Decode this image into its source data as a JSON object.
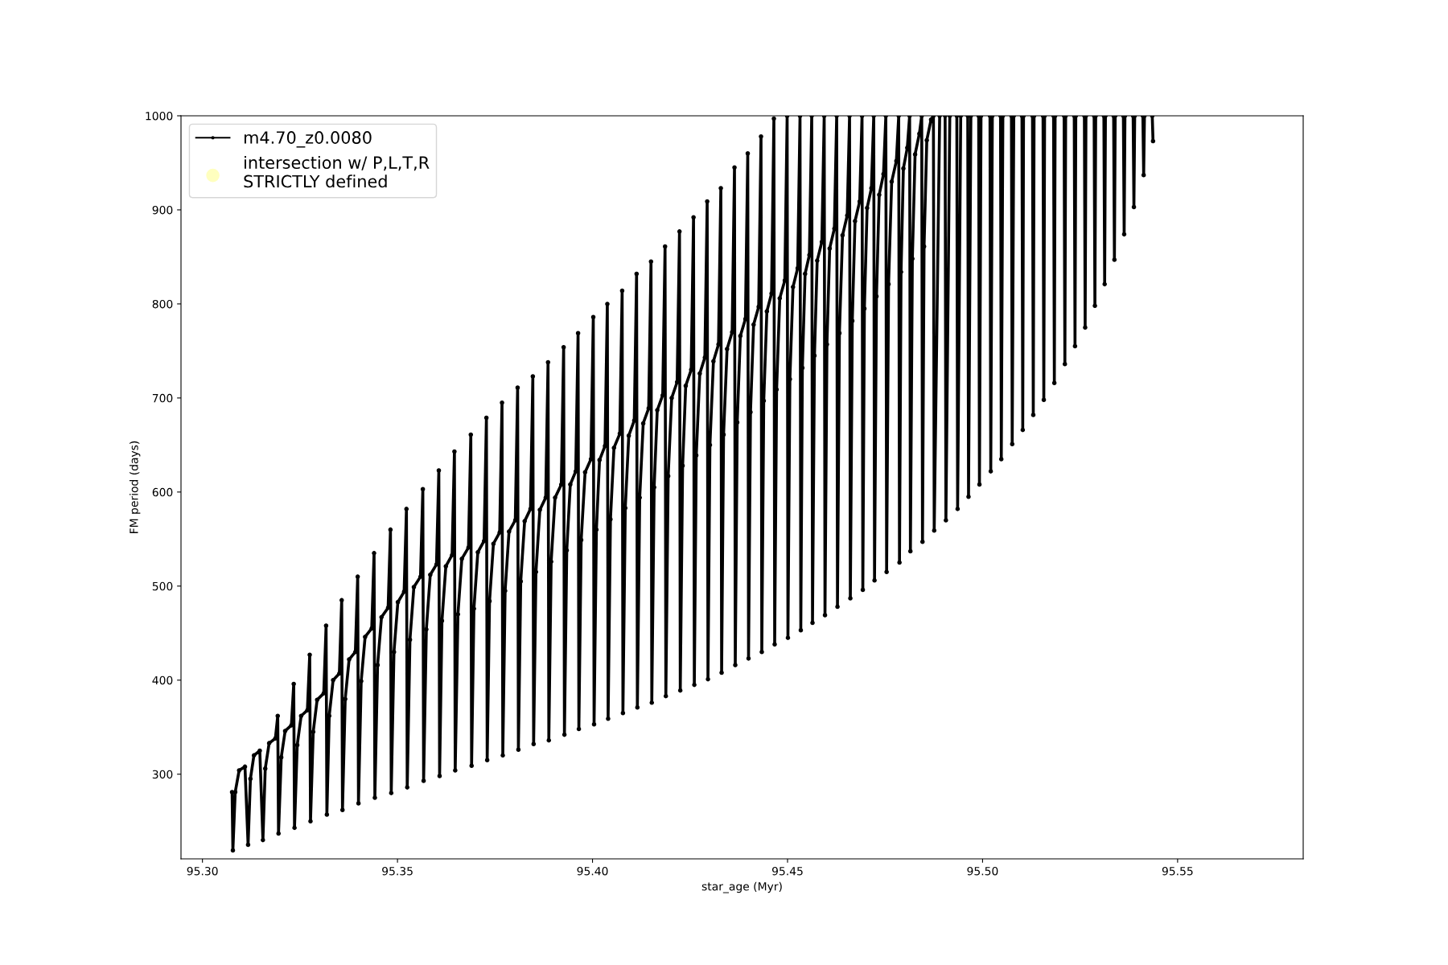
{
  "chart_data": {
    "type": "line",
    "xlabel": "star_age (Myr)",
    "ylabel": "FM period (days)",
    "xlim": [
      95.2945,
      95.5822
    ],
    "ylim": [
      210,
      1000
    ],
    "xticks": [
      {
        "value": 95.3,
        "label": "95.30"
      },
      {
        "value": 95.35,
        "label": "95.35"
      },
      {
        "value": 95.4,
        "label": "95.40"
      },
      {
        "value": 95.45,
        "label": "95.45"
      },
      {
        "value": 95.5,
        "label": "95.50"
      },
      {
        "value": 95.55,
        "label": "95.55"
      }
    ],
    "yticks": [
      300,
      400,
      500,
      600,
      700,
      800,
      900,
      1000
    ],
    "legend": "top left",
    "marker": "circle",
    "series": [
      {
        "name": "m4.70_z0.0080",
        "color": "#000000",
        "x": [
          95.3076,
          95.3078,
          95.3084,
          95.3094,
          95.3109,
          95.3117,
          95.3123,
          95.3132,
          95.3147,
          95.3155,
          95.3161,
          95.3171,
          95.3187,
          95.3193,
          95.3195,
          95.3202,
          95.3212,
          95.3228,
          95.3234,
          95.3236,
          95.3243,
          95.3253,
          95.3269,
          95.3275,
          95.3277,
          95.3284,
          95.3294,
          95.3311,
          95.3317,
          95.3319,
          95.3325,
          95.3335,
          95.3351,
          95.3357,
          95.3359,
          95.3366,
          95.3376,
          95.3392,
          95.3398,
          95.34,
          95.3407,
          95.3417,
          95.3434,
          95.344,
          95.3442,
          95.3449,
          95.3459,
          95.3476,
          95.3482,
          95.3484,
          95.3491,
          95.3501,
          95.3517,
          95.3523,
          95.3525,
          95.3532,
          95.3542,
          95.3559,
          95.3565,
          95.3567,
          95.3574,
          95.3584,
          95.36,
          95.3606,
          95.3608,
          95.3614,
          95.3624,
          95.364,
          95.3646,
          95.3648,
          95.3655,
          95.3665,
          95.3682,
          95.3688,
          95.369,
          95.3696,
          95.3706,
          95.3722,
          95.3728,
          95.373,
          95.3736,
          95.3746,
          95.3762,
          95.3768,
          95.377,
          95.3776,
          95.3786,
          95.3802,
          95.3808,
          95.381,
          95.3816,
          95.3826,
          95.3841,
          95.3847,
          95.3849,
          95.3855,
          95.3865,
          95.388,
          95.3886,
          95.3888,
          95.3894,
          95.3904,
          95.392,
          95.3926,
          95.3928,
          95.3934,
          95.3943,
          95.3957,
          95.3963,
          95.3965,
          95.3971,
          95.3981,
          95.3996,
          95.4002,
          95.4004,
          95.401,
          95.4018,
          95.4032,
          95.4038,
          95.404,
          95.4046,
          95.4055,
          95.407,
          95.4076,
          95.4078,
          95.4084,
          95.4093,
          95.4107,
          95.4113,
          95.4115,
          95.4121,
          95.413,
          95.4144,
          95.415,
          95.4152,
          95.4158,
          95.4166,
          95.418,
          95.4186,
          95.4188,
          95.4194,
          95.4203,
          95.4217,
          95.4223,
          95.4225,
          95.4231,
          95.4239,
          95.4253,
          95.4259,
          95.4261,
          95.4266,
          95.4275,
          95.4288,
          95.4294,
          95.4296,
          95.4301,
          95.431,
          95.4323,
          95.4329,
          95.4331,
          95.4336,
          95.4345,
          95.4358,
          95.4364,
          95.4366,
          95.4371,
          95.4379,
          95.4392,
          95.4398,
          95.44,
          95.4405,
          95.4413,
          95.4426,
          95.4432,
          95.4434,
          95.4439,
          95.4447,
          95.4459,
          95.4465,
          95.4467,
          95.4472,
          95.448,
          95.4493,
          95.4499,
          95.4501,
          95.4506,
          95.4514,
          95.4526,
          95.4532,
          95.4534,
          95.4538,
          95.4545,
          95.4556,
          95.4562,
          95.4564,
          95.4569,
          95.4576,
          95.4588,
          95.4594,
          95.4596,
          95.4601,
          95.4608,
          95.462,
          95.4626,
          95.4628,
          95.4633,
          95.4641,
          95.4653,
          95.4659,
          95.4661,
          95.4666,
          95.4673,
          95.4685,
          95.4691,
          95.4693,
          95.4697,
          95.4704,
          95.4715,
          95.4721,
          95.4723,
          95.4728,
          95.4735,
          95.4746,
          95.4752,
          95.4754,
          95.4759,
          95.4767,
          95.4779,
          95.4785,
          95.4787,
          95.4791,
          95.4797,
          95.4807,
          95.4813,
          95.4815,
          95.482,
          95.4827,
          95.4838,
          95.4844,
          95.4846,
          95.485,
          95.4857,
          95.4868,
          95.4874,
          95.4876,
          95.489,
          95.49,
          95.4904,
          95.4906,
          95.4916,
          95.493,
          95.4934,
          95.4936,
          95.4944,
          95.4958,
          95.4962,
          95.4964,
          95.497,
          95.4986,
          95.499,
          95.4992,
          95.4996,
          95.5015,
          95.5019,
          95.5021,
          95.5025,
          95.5042,
          95.5046,
          95.5048,
          95.5052,
          95.507,
          95.5074,
          95.5076,
          95.508,
          95.5097,
          95.5101,
          95.5103,
          95.5105,
          95.5124,
          95.5128,
          95.513,
          95.5132,
          95.5151,
          95.5155,
          95.5157,
          95.5159,
          95.5178,
          95.5182,
          95.5184,
          95.5186,
          95.5205,
          95.5209,
          95.5211,
          95.5213,
          95.5231,
          95.5235,
          95.5237,
          95.5239,
          95.5257,
          95.5261,
          95.5263,
          95.5265,
          95.5282,
          95.5286,
          95.5288,
          95.529,
          95.5307,
          95.5311,
          95.5313,
          95.5315,
          95.5332,
          95.5336,
          95.5338,
          95.534,
          95.5357,
          95.5361,
          95.5363,
          95.5365,
          95.5382,
          95.5386,
          95.5388,
          95.539,
          95.5407,
          95.5411,
          95.5413,
          95.5415,
          95.5431,
          95.5435,
          95.5437
        ],
        "values": [
          281,
          219,
          281,
          304,
          308,
          225,
          295,
          320,
          325,
          230,
          306,
          333,
          338,
          362,
          237,
          318,
          346,
          352,
          396,
          243,
          331,
          362,
          368,
          427,
          250,
          345,
          379,
          386,
          458,
          257,
          362,
          400,
          407,
          485,
          262,
          380,
          422,
          430,
          510,
          269,
          399,
          446,
          455,
          535,
          275,
          416,
          467,
          477,
          560,
          280,
          430,
          483,
          494,
          582,
          286,
          443,
          499,
          510,
          603,
          293,
          454,
          512,
          523,
          623,
          298,
          463,
          521,
          533,
          643,
          304,
          470,
          529,
          541,
          661,
          309,
          476,
          536,
          548,
          679,
          315,
          484,
          545,
          557,
          695,
          320,
          495,
          558,
          570,
          711,
          326,
          505,
          569,
          582,
          723,
          332,
          515,
          581,
          594,
          738,
          336,
          526,
          594,
          608,
          754,
          342,
          538,
          608,
          622,
          769,
          348,
          549,
          621,
          635,
          786,
          353,
          560,
          634,
          649,
          800,
          359,
          571,
          647,
          662,
          814,
          365,
          583,
          660,
          676,
          832,
          371,
          594,
          673,
          689,
          845,
          376,
          605,
          687,
          703,
          861,
          383,
          617,
          700,
          717,
          877,
          389,
          628,
          713,
          730,
          892,
          395,
          639,
          726,
          743,
          909,
          401,
          650,
          739,
          757,
          923,
          408,
          661,
          752,
          770,
          945,
          416,
          674,
          766,
          784,
          960,
          423,
          685,
          778,
          797,
          978,
          430,
          697,
          792,
          811,
          997,
          438,
          709,
          806,
          825,
          1000,
          445,
          720,
          818,
          838,
          1000,
          453,
          732,
          832,
          852,
          1000,
          461,
          745,
          846,
          866,
          1000,
          469,
          757,
          859,
          880,
          1000,
          478,
          769,
          873,
          894,
          1000,
          487,
          782,
          888,
          909,
          1000,
          496,
          795,
          902,
          923,
          1000,
          506,
          808,
          916,
          938,
          1000,
          515,
          821,
          930,
          952,
          1000,
          525,
          834,
          944,
          966,
          1000,
          537,
          848,
          959,
          981,
          1000,
          547,
          861,
          974,
          996,
          1000,
          559,
          1000,
          null,
          1000,
          570,
          1000,
          null,
          1000,
          582,
          1000,
          null,
          1000,
          595,
          1000,
          null,
          1000,
          608,
          1000,
          null,
          1000,
          622,
          1000,
          null,
          1000,
          635,
          1000,
          null,
          1000,
          651,
          1000,
          null,
          1000,
          666,
          1000,
          null,
          1000,
          682,
          1000,
          null,
          1000,
          698,
          1000,
          null,
          1000,
          716,
          1000,
          null,
          1000,
          736,
          1000,
          null,
          1000,
          755,
          1000,
          null,
          1000,
          775,
          1000,
          null,
          1000,
          798,
          1000,
          null,
          1000,
          821,
          1000,
          null,
          1000,
          847,
          1000,
          null,
          1000,
          874,
          1000,
          null,
          1000,
          903,
          1000,
          null,
          1000,
          937,
          1000,
          null,
          1000,
          973
        ]
      },
      {
        "name": "intersection w/ P,L,T,R\nSTRICTLY defined",
        "type": "scatter",
        "color": "#ffffbf"
      }
    ]
  }
}
